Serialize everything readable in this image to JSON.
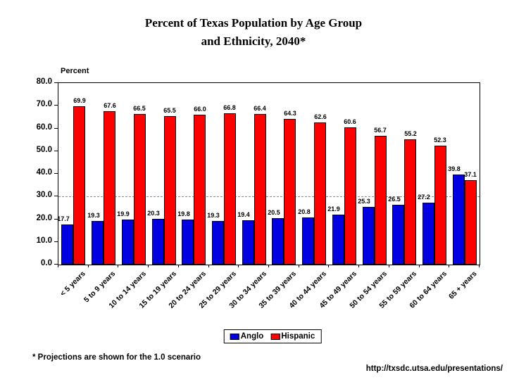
{
  "page": {
    "title_line1": "Percent of Texas Population by Age Group",
    "title_line2": "and Ethnicity, 2040*",
    "footnote": "* Projections are shown for the 1.0 scenario",
    "url": "http://txsdc.utsa.edu/presentations/"
  },
  "chart_data": {
    "type": "bar",
    "title": "Percent of Texas Population by Age Group and Ethnicity, 2040*",
    "xlabel": "",
    "ylabel": "Percent",
    "ylim": [
      0,
      80
    ],
    "ytick_labels": [
      "80.0",
      "70.0",
      "60.0",
      "50.0",
      "40.0",
      "30.0",
      "20.0",
      "10.0",
      "0.0"
    ],
    "dashed_gridline": 30,
    "grid": "off except single dashed line at 30.0",
    "legend_position": "bottom-center",
    "categories": [
      "< 5 years",
      "5 to 9 years",
      "10 to 14 years",
      "15 to 19 years",
      "20 to 24 years",
      "25 to 29 years",
      "30 to 34 years",
      "35 to 39 years",
      "40 to 44 years",
      "45 to 49 years",
      "50 to 54 years",
      "55 to 59 years",
      "60 to 64 years",
      "65 + years"
    ],
    "series": [
      {
        "name": "Anglo",
        "color": "#0000e0",
        "values": [
          17.7,
          19.3,
          19.9,
          20.3,
          19.8,
          19.3,
          19.4,
          20.5,
          20.8,
          21.9,
          25.3,
          26.5,
          27.2,
          39.8
        ]
      },
      {
        "name": "Hispanic",
        "color": "#ff0000",
        "values": [
          69.9,
          67.6,
          66.5,
          65.5,
          66.0,
          66.8,
          66.4,
          64.3,
          62.6,
          60.6,
          56.7,
          55.2,
          52.3,
          37.1
        ]
      }
    ]
  }
}
